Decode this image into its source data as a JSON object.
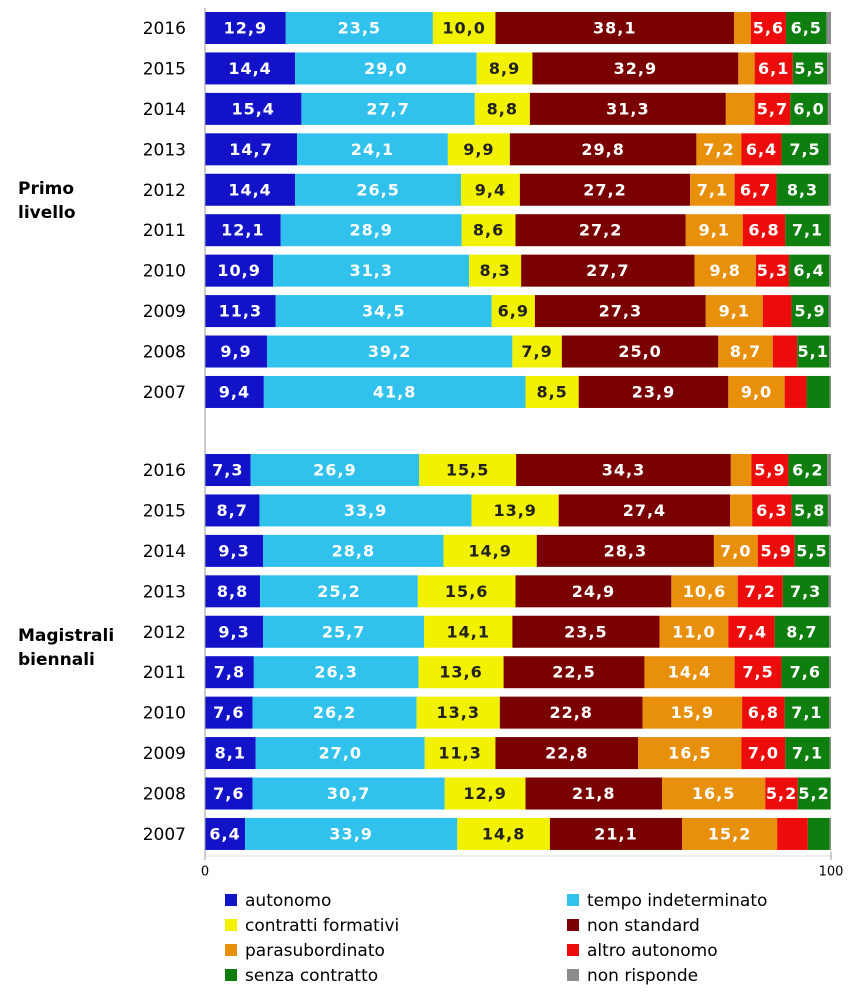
{
  "chart_data": {
    "type": "stacked_bar_h",
    "xlim": [
      0,
      100
    ],
    "xticks": [
      0,
      100
    ],
    "series": [
      {
        "name": "autonomo",
        "color": "#1212c8"
      },
      {
        "name": "tempo indeterminato",
        "color": "#30c2ec"
      },
      {
        "name": "contratti formativi",
        "color": "#f2f200"
      },
      {
        "name": "non standard",
        "color": "#7a0000"
      },
      {
        "name": "parasubordinato",
        "color": "#e8900c"
      },
      {
        "name": "altro autonomo",
        "color": "#ec0c0c"
      },
      {
        "name": "senza contratto",
        "color": "#0e7e0e"
      },
      {
        "name": "non risponde",
        "color": "#8c8c8c"
      }
    ],
    "groups": [
      {
        "label": "Primo livello",
        "categories": [
          "2016",
          "2015",
          "2014",
          "2013",
          "2012",
          "2011",
          "2010",
          "2009",
          "2008",
          "2007"
        ],
        "values": [
          [
            12.9,
            23.5,
            10.0,
            38.1,
            2.7,
            5.6,
            6.5,
            0.7
          ],
          [
            14.4,
            29.0,
            8.9,
            32.9,
            2.6,
            6.1,
            5.5,
            0.6
          ],
          [
            15.4,
            27.7,
            8.8,
            31.3,
            4.6,
            5.7,
            6.0,
            0.5
          ],
          [
            14.7,
            24.1,
            9.9,
            29.8,
            7.2,
            6.4,
            7.5,
            0.4
          ],
          [
            14.4,
            26.5,
            9.4,
            27.2,
            7.1,
            6.7,
            8.3,
            0.4
          ],
          [
            12.1,
            28.9,
            8.6,
            27.2,
            9.1,
            6.8,
            7.1,
            0.2
          ],
          [
            10.9,
            31.3,
            8.3,
            27.7,
            9.8,
            5.3,
            6.4,
            0.3
          ],
          [
            11.3,
            34.5,
            6.9,
            27.3,
            9.1,
            4.6,
            5.9,
            0.4
          ],
          [
            9.9,
            39.2,
            7.9,
            25.0,
            8.7,
            3.9,
            5.1,
            0.3
          ],
          [
            9.4,
            41.8,
            8.5,
            23.9,
            9.0,
            3.5,
            3.7,
            0.2
          ]
        ],
        "value_labels": [
          [
            "12,9",
            "23,5",
            "10,0",
            "38,1",
            null,
            "5,6",
            "6,5",
            null
          ],
          [
            "14,4",
            "29,0",
            "8,9",
            "32,9",
            null,
            "6,1",
            "5,5",
            null
          ],
          [
            "15,4",
            "27,7",
            "8,8",
            "31,3",
            null,
            "5,7",
            "6,0",
            null
          ],
          [
            "14,7",
            "24,1",
            "9,9",
            "29,8",
            "7,2",
            "6,4",
            "7,5",
            null
          ],
          [
            "14,4",
            "26,5",
            "9,4",
            "27,2",
            "7,1",
            "6,7",
            "8,3",
            null
          ],
          [
            "12,1",
            "28,9",
            "8,6",
            "27,2",
            "9,1",
            "6,8",
            "7,1",
            null
          ],
          [
            "10,9",
            "31,3",
            "8,3",
            "27,7",
            "9,8",
            "5,3",
            "6,4",
            null
          ],
          [
            "11,3",
            "34,5",
            "6,9",
            "27,3",
            "9,1",
            null,
            "5,9",
            null
          ],
          [
            "9,9",
            "39,2",
            "7,9",
            "25,0",
            "8,7",
            null,
            "5,1",
            null
          ],
          [
            "9,4",
            "41,8",
            "8,5",
            "23,9",
            "9,0",
            null,
            null,
            null
          ]
        ]
      },
      {
        "label": "Magistrali biennali",
        "categories": [
          "2016",
          "2015",
          "2014",
          "2013",
          "2012",
          "2011",
          "2010",
          "2009",
          "2008",
          "2007"
        ],
        "values": [
          [
            7.3,
            26.9,
            15.5,
            34.3,
            3.3,
            5.9,
            6.2,
            0.6
          ],
          [
            8.7,
            33.9,
            13.9,
            27.4,
            3.5,
            6.3,
            5.8,
            0.5
          ],
          [
            9.3,
            28.8,
            14.9,
            28.3,
            7.0,
            5.9,
            5.5,
            0.3
          ],
          [
            8.8,
            25.2,
            15.6,
            24.9,
            10.6,
            7.2,
            7.3,
            0.4
          ],
          [
            9.3,
            25.7,
            14.1,
            23.5,
            11.0,
            7.4,
            8.7,
            0.3
          ],
          [
            7.8,
            26.3,
            13.6,
            22.5,
            14.4,
            7.5,
            7.6,
            0.3
          ],
          [
            7.6,
            26.2,
            13.3,
            22.8,
            15.9,
            6.8,
            7.1,
            0.3
          ],
          [
            8.1,
            27.0,
            11.3,
            22.8,
            16.5,
            7.0,
            7.1,
            0.2
          ],
          [
            7.6,
            30.7,
            12.9,
            21.8,
            16.5,
            5.2,
            5.2,
            0.1
          ],
          [
            6.4,
            33.9,
            14.8,
            21.1,
            15.2,
            4.9,
            3.5,
            0.2
          ]
        ],
        "value_labels": [
          [
            "7,3",
            "26,9",
            "15,5",
            "34,3",
            null,
            "5,9",
            "6,2",
            null
          ],
          [
            "8,7",
            "33,9",
            "13,9",
            "27,4",
            null,
            "6,3",
            "5,8",
            null
          ],
          [
            "9,3",
            "28,8",
            "14,9",
            "28,3",
            "7,0",
            "5,9",
            "5,5",
            null
          ],
          [
            "8,8",
            "25,2",
            "15,6",
            "24,9",
            "10,6",
            "7,2",
            "7,3",
            null
          ],
          [
            "9,3",
            "25,7",
            "14,1",
            "23,5",
            "11,0",
            "7,4",
            "8,7",
            null
          ],
          [
            "7,8",
            "26,3",
            "13,6",
            "22,5",
            "14,4",
            "7,5",
            "7,6",
            null
          ],
          [
            "7,6",
            "26,2",
            "13,3",
            "22,8",
            "15,9",
            "6,8",
            "7,1",
            null
          ],
          [
            "8,1",
            "27,0",
            "11,3",
            "22,8",
            "16,5",
            "7,0",
            "7,1",
            null
          ],
          [
            "7,6",
            "30,7",
            "12,9",
            "21,8",
            "16,5",
            "5,2",
            "5,2",
            null
          ],
          [
            "6,4",
            "33,9",
            "14,8",
            "21,1",
            "15,2",
            null,
            null,
            null
          ]
        ]
      }
    ]
  }
}
